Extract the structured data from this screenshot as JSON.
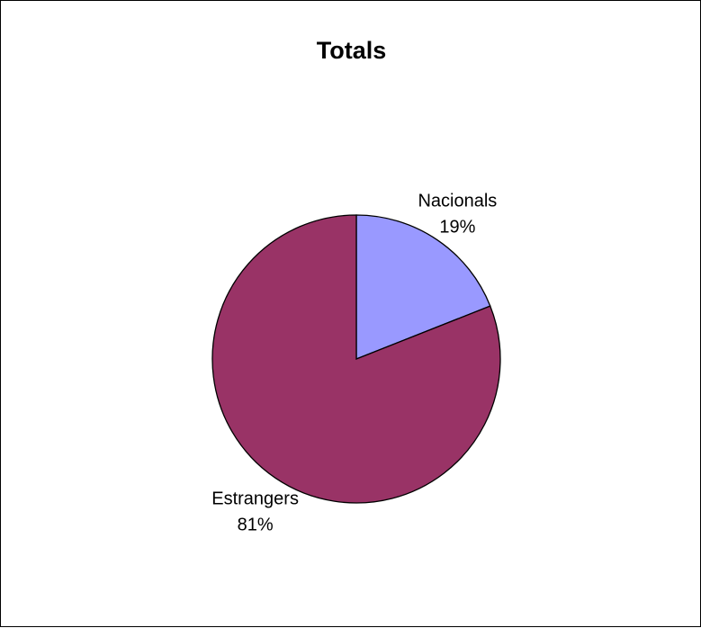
{
  "chart_data": {
    "type": "pie",
    "title": "Totals",
    "slices": [
      {
        "label": "Nacionals",
        "value": 19,
        "percent_label": "19%",
        "color": "#9999ff"
      },
      {
        "label": "Estrangers",
        "value": 81,
        "percent_label": "81%",
        "color": "#993366"
      }
    ],
    "start_angle_deg": 0,
    "direction": "clockwise",
    "legend": "none"
  }
}
